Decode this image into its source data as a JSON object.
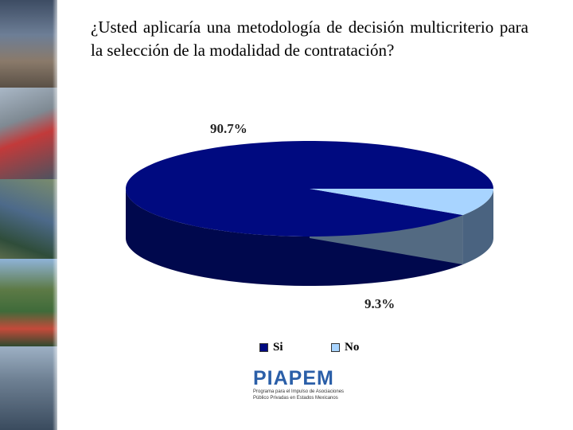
{
  "question": "¿Usted aplicaría una metodología de decisión multicriterio para la selección de la modalidad de contratación?",
  "chart_data": {
    "type": "pie",
    "title": "",
    "categories": [
      "Si",
      "No"
    ],
    "values": [
      90.7,
      9.3
    ],
    "data_labels": [
      "90.7%",
      "9.3%"
    ],
    "colors": [
      "#000a80",
      "#a8d4ff"
    ],
    "legend_placement": "bottom",
    "style": "3d"
  },
  "logo": {
    "text": "PIAPEM",
    "tagline": "Programa para el Impulso de Asociaciones Público Privadas en Estados Mexicanos"
  }
}
